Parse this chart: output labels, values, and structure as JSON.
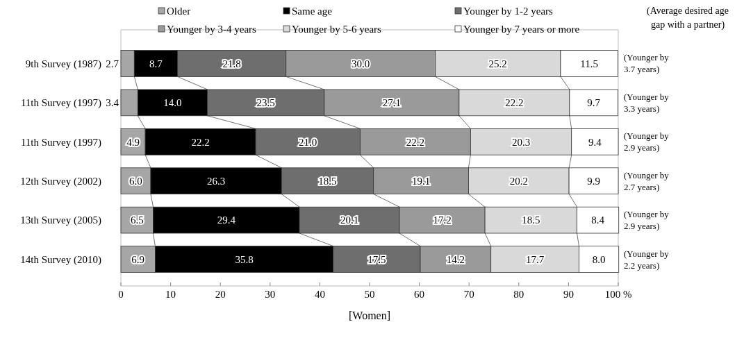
{
  "chart_data": {
    "type": "bar",
    "orientation": "horizontal",
    "stacked": true,
    "xlabel": "[Women]",
    "categories": [
      "9th Survey (1987)",
      "11th Survey (1997)",
      "11th Survey (1997)",
      "12th Survey (2002)",
      "13th Survey (2005)",
      "14th Survey (2010)"
    ],
    "series": [
      {
        "name": "Older",
        "color": "#a6a6a6",
        "values": [
          2.7,
          3.4,
          4.9,
          6.0,
          6.5,
          6.9
        ],
        "value_labels": [
          "2.7",
          "3.4",
          "4.9",
          "6.0",
          "6.5",
          "6.9"
        ]
      },
      {
        "name": "Same age",
        "color": "#000000",
        "values": [
          8.7,
          14.0,
          22.2,
          26.3,
          29.4,
          35.8
        ],
        "value_labels": [
          "8.7",
          "14.0",
          "22.2",
          "26.3",
          "29.4",
          "35.8"
        ]
      },
      {
        "name": "Younger by 1-2 years",
        "color": "#6e6e6e",
        "values": [
          21.8,
          23.5,
          21.0,
          18.5,
          20.1,
          17.5
        ],
        "value_labels": [
          "21.8",
          "23.5",
          "21.0",
          "18.5",
          "20.1",
          "17.5"
        ]
      },
      {
        "name": "Younger by 3-4 years",
        "color": "#9a9a9a",
        "values": [
          30.0,
          27.1,
          22.2,
          19.1,
          17.2,
          14.2
        ],
        "value_labels": [
          "30.0",
          "27.1",
          "22.2",
          "19.1",
          "17.2",
          "14.2"
        ]
      },
      {
        "name": "Younger by 5-6 years",
        "color": "#d9d9d9",
        "values": [
          25.2,
          22.2,
          20.3,
          20.2,
          18.5,
          17.7
        ],
        "value_labels": [
          "25.2",
          "22.2",
          "20.3",
          "20.2",
          "18.5",
          "17.7"
        ]
      },
      {
        "name": "Younger by 7 years or more",
        "color": "#ffffff",
        "values": [
          11.5,
          9.7,
          9.4,
          9.9,
          8.4,
          8.0
        ],
        "value_labels": [
          "11.5",
          "9.7",
          "9.4",
          "9.9",
          "8.4",
          "8.0"
        ]
      }
    ],
    "xlim": [
      0,
      100
    ],
    "xticks": [
      0,
      10,
      20,
      30,
      40,
      50,
      60,
      70,
      80,
      90,
      {
        "value": 100,
        "label": "100 %"
      }
    ],
    "legend": "top",
    "grid": false,
    "annotations": [
      "(Average desired age gap with a partner)",
      "(Younger by 3.7 years)",
      "(Younger by 3.3 years)",
      "(Younger by 2.9 years)",
      "(Younger by 2.7 years)",
      "(Younger by 2.9 years)",
      "(Younger by 2.2 years)"
    ]
  }
}
